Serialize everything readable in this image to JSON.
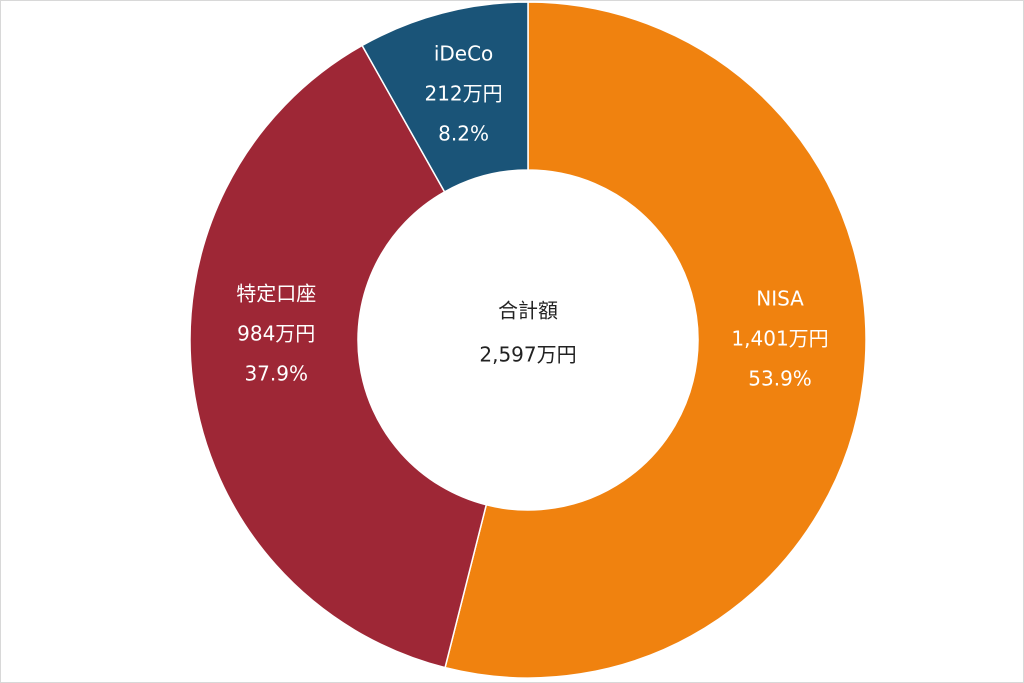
{
  "chart_data": {
    "type": "donut",
    "categories": [
      "NISA",
      "特定口座",
      "iDeCo"
    ],
    "values": [
      1401,
      984,
      212
    ],
    "value_labels": [
      "1,401万円",
      "984万円",
      "212万円"
    ],
    "percent_labels": [
      "53.9%",
      "37.9%",
      "8.2%"
    ],
    "colors": [
      "#f0820f",
      "#9e2736",
      "#1a5478"
    ],
    "center_title": "合計額",
    "center_total": "2,597万円"
  }
}
